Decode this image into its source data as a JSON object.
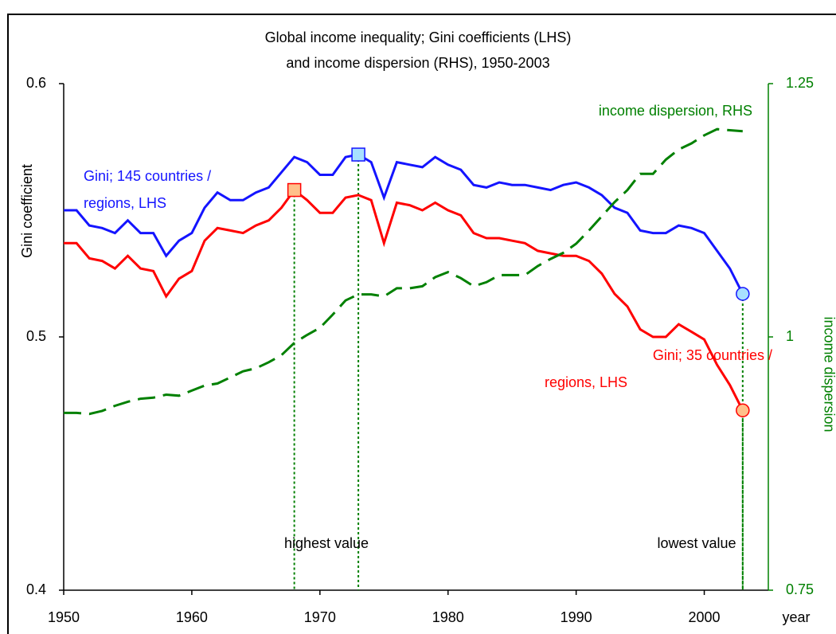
{
  "chart_data": {
    "type": "line",
    "title": [
      "Global income inequality; Gini coefficients (LHS)",
      "and income dispersion (RHS), 1950-2003"
    ],
    "ylabel": "Gini coefficient",
    "y2label": "income dispersion",
    "xlabel": "year",
    "x": [
      1950,
      1951,
      1952,
      1953,
      1954,
      1955,
      1956,
      1957,
      1958,
      1959,
      1960,
      1961,
      1962,
      1963,
      1964,
      1965,
      1966,
      1967,
      1968,
      1969,
      1970,
      1971,
      1972,
      1973,
      1974,
      1975,
      1976,
      1977,
      1978,
      1979,
      1980,
      1981,
      1982,
      1983,
      1984,
      1985,
      1986,
      1987,
      1988,
      1989,
      1990,
      1991,
      1992,
      1993,
      1994,
      1995,
      1996,
      1997,
      1998,
      1999,
      2000,
      2001,
      2002,
      2003
    ],
    "xlim": [
      1950,
      2005
    ],
    "xticks": [
      1950,
      1960,
      1970,
      1980,
      1990,
      2000
    ],
    "ylim": [
      0.4,
      0.6
    ],
    "yticks": [
      0.4,
      0.5,
      0.6
    ],
    "y2lim": [
      0.75,
      1.25
    ],
    "y2ticks": [
      0.75,
      1,
      1.25
    ],
    "series": [
      {
        "label": [
          "Gini; 145 countries /",
          "regions, LHS"
        ],
        "color": "#1414ff",
        "values": [
          0.55,
          0.55,
          0.544,
          0.543,
          0.541,
          0.546,
          0.541,
          0.541,
          0.532,
          0.538,
          0.541,
          0.551,
          0.557,
          0.554,
          0.554,
          0.557,
          0.559,
          0.565,
          0.571,
          0.569,
          0.564,
          0.564,
          0.571,
          0.572,
          0.569,
          0.555,
          0.569,
          0.568,
          0.567,
          0.571,
          0.568,
          0.566,
          0.56,
          0.559,
          0.561,
          0.56,
          0.56,
          0.559,
          0.558,
          0.56,
          0.561,
          0.559,
          0.556,
          0.551,
          0.549,
          0.542,
          0.541,
          0.541,
          0.544,
          0.543,
          0.541,
          0.534,
          0.527,
          0.517
        ]
      },
      {
        "label": [
          "Gini; 35 countries /",
          "regions, LHS"
        ],
        "color": "#ff0000",
        "values": [
          0.537,
          0.537,
          0.531,
          0.53,
          0.527,
          0.532,
          0.527,
          0.526,
          0.516,
          0.523,
          0.526,
          0.538,
          0.543,
          0.542,
          0.541,
          0.544,
          0.546,
          0.551,
          0.558,
          0.554,
          0.549,
          0.549,
          0.555,
          0.556,
          0.554,
          0.537,
          0.553,
          0.552,
          0.55,
          0.553,
          0.55,
          0.548,
          0.541,
          0.539,
          0.539,
          0.538,
          0.537,
          0.534,
          0.533,
          0.532,
          0.532,
          0.53,
          0.525,
          0.517,
          0.512,
          0.503,
          0.5,
          0.5,
          0.505,
          0.502,
          0.499,
          0.489,
          0.481,
          0.471
        ]
      },
      {
        "label": [
          "income dispersion, RHS"
        ],
        "color": "#008000",
        "axis": "y2",
        "dashed": true,
        "values": [
          0.925,
          0.925,
          0.924,
          0.927,
          0.932,
          0.936,
          0.939,
          0.94,
          0.943,
          0.942,
          0.947,
          0.952,
          0.954,
          0.96,
          0.966,
          0.969,
          0.975,
          0.982,
          0.994,
          1.002,
          1.009,
          1.022,
          1.036,
          1.042,
          1.042,
          1.04,
          1.048,
          1.048,
          1.05,
          1.059,
          1.064,
          1.058,
          1.05,
          1.054,
          1.061,
          1.061,
          1.061,
          1.07,
          1.077,
          1.083,
          1.092,
          1.105,
          1.119,
          1.133,
          1.145,
          1.161,
          1.161,
          1.175,
          1.185,
          1.191,
          1.199,
          1.205,
          1.204,
          1.203
        ]
      }
    ],
    "annotations": [
      "highest value",
      "lowest value"
    ]
  }
}
